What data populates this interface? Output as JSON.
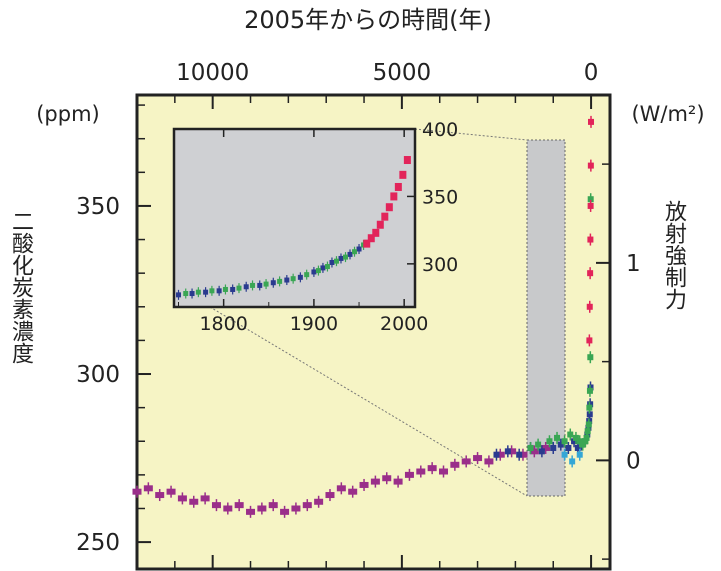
{
  "chart_data": {
    "type": "scatter",
    "title": "2005年からの時間(年)",
    "left_unit": "(ppm)",
    "left_title": "二酸化炭素濃度",
    "right_unit": "(W/m²)",
    "right_title": "放射強制力",
    "x_axis": {
      "reversed": true,
      "range": [
        12000,
        -500
      ],
      "ticks": [
        10000,
        5000,
        0
      ],
      "tick_labels": [
        "10000",
        "5000",
        "0"
      ]
    },
    "y_axis": {
      "range": [
        242,
        383
      ],
      "ticks": [
        250,
        300,
        350
      ],
      "tick_labels": [
        "250",
        "300",
        "350"
      ]
    },
    "y2_axis": {
      "range": [
        -0.55,
        1.85
      ],
      "ticks": [
        0,
        1
      ],
      "tick_labels": [
        "0",
        "1"
      ]
    },
    "colors": {
      "plot_bg": "#f6f4c5",
      "inset_bg": "#cfd0d3",
      "highlight_box": "#c8c9cb",
      "magenta": "#9a2e8a",
      "blue": "#2a3b8f",
      "green": "#3aa654",
      "red": "#e2245a",
      "cyan": "#35a7d6"
    },
    "series": [
      {
        "color": "magenta",
        "x": [
          12000,
          11700,
          11400,
          11100,
          10800,
          10500,
          10200,
          9900,
          9600,
          9300,
          9000,
          8700,
          8400,
          8100,
          7800,
          7500,
          7200,
          6900,
          6600,
          6300,
          6000,
          5700,
          5400,
          5100,
          4800,
          4500,
          4200,
          3900,
          3600,
          3300,
          3000,
          2700,
          2400,
          2100,
          1800,
          1500,
          1200
        ],
        "y": [
          265,
          266,
          264,
          265,
          263,
          262,
          263,
          261,
          260,
          261,
          259,
          260,
          261,
          259,
          260,
          261,
          262,
          264,
          266,
          265,
          267,
          268,
          269,
          268,
          270,
          271,
          272,
          271,
          273,
          274,
          275,
          274,
          276,
          277,
          276,
          277,
          278
        ]
      },
      {
        "color": "blue",
        "x": [
          2500,
          2200,
          1900,
          1600,
          1300,
          1000,
          800,
          600,
          450,
          350,
          250,
          160,
          100,
          70,
          50,
          35,
          25,
          15
        ],
        "y": [
          276,
          277,
          276,
          278,
          277,
          278,
          279,
          278,
          280,
          278,
          279,
          280,
          282,
          284,
          286,
          288,
          291,
          296
        ]
      },
      {
        "color": "green",
        "x": [
          1600,
          1400,
          1100,
          900,
          700,
          550,
          400,
          300,
          220,
          150,
          120,
          90,
          60,
          45,
          30,
          20,
          10
        ],
        "y": [
          278,
          279,
          280,
          281,
          280,
          282,
          281,
          280,
          279,
          280,
          281,
          283,
          285,
          290,
          295,
          305,
          352
        ]
      },
      {
        "color": "cyan",
        "x": [
          700,
          500,
          300
        ],
        "y": [
          276,
          274,
          276
        ]
      },
      {
        "color": "red",
        "x": [
          45,
          35,
          25,
          18,
          12,
          6,
          2
        ],
        "y": [
          310,
          320,
          330,
          340,
          350,
          362,
          375
        ]
      }
    ],
    "inset": {
      "x_ticks": [
        1800,
        1900,
        2000
      ],
      "x_tick_labels": [
        "1800",
        "1900",
        "2000"
      ],
      "y_ticks": [
        300,
        350,
        400
      ],
      "y_tick_labels": [
        "300",
        "350",
        "400"
      ],
      "x_range": [
        1745,
        2012
      ],
      "y_range": [
        268,
        400
      ],
      "series": [
        {
          "color": "blue",
          "x": [
            1750,
            1765,
            1780,
            1795,
            1810,
            1825,
            1840,
            1855,
            1870,
            1885,
            1900,
            1910,
            1920,
            1930,
            1940,
            1950
          ],
          "y": [
            277,
            278,
            279,
            280,
            281,
            283,
            284,
            286,
            288,
            290,
            294,
            297,
            301,
            304,
            307,
            311
          ]
        },
        {
          "color": "green",
          "x": [
            1758,
            1772,
            1787,
            1802,
            1817,
            1832,
            1847,
            1862,
            1877,
            1892,
            1905,
            1915,
            1925,
            1935,
            1945,
            1955
          ],
          "y": [
            278,
            279,
            280,
            281,
            282,
            284,
            285,
            287,
            289,
            292,
            295,
            298,
            302,
            305,
            309,
            314
          ]
        },
        {
          "color": "red",
          "x": [
            1958,
            1963,
            1968,
            1973,
            1978,
            1983,
            1988,
            1993,
            1998,
            2003
          ],
          "y": [
            315,
            319,
            323,
            329,
            335,
            342,
            350,
            357,
            366,
            377
          ]
        }
      ]
    }
  }
}
